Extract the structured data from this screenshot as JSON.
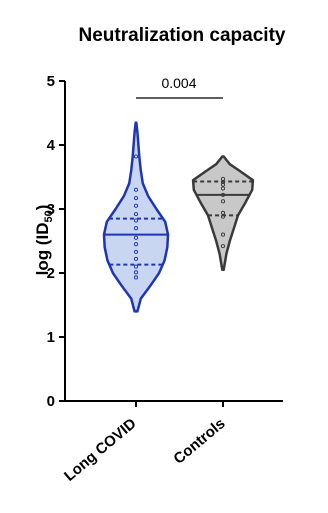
{
  "chart_data": {
    "type": "violin",
    "title": "Neutralization capacity",
    "ylabel": "log (ID",
    "ylabel_subscript": "50",
    "ylabel_close": ")",
    "ylim": [
      0,
      5
    ],
    "yticks": [
      "0",
      "1",
      "2",
      "3",
      "4",
      "5"
    ],
    "categories": [
      "Long COVID",
      "Controls"
    ],
    "colors": {
      "Long COVID": "#1f35b4",
      "Controls": "#3a3a3a",
      "fill_long_covid": "#c9d6f2",
      "fill_controls": "#c8c8c8"
    },
    "series": [
      {
        "category": "Long COVID",
        "range": [
          1.4,
          4.35
        ],
        "median": 2.6,
        "q1": 2.13,
        "q3": 2.85,
        "density": [
          [
            1.4,
            0.02
          ],
          [
            1.6,
            0.07
          ],
          [
            1.8,
            0.21
          ],
          [
            2.0,
            0.34
          ],
          [
            2.2,
            0.42
          ],
          [
            2.4,
            0.46
          ],
          [
            2.6,
            0.47
          ],
          [
            2.8,
            0.43
          ],
          [
            3.0,
            0.3
          ],
          [
            3.2,
            0.18
          ],
          [
            3.4,
            0.1
          ],
          [
            3.6,
            0.07
          ],
          [
            3.8,
            0.05
          ],
          [
            4.0,
            0.035
          ],
          [
            4.2,
            0.02
          ],
          [
            4.35,
            0.005
          ]
        ],
        "points": [
          1.93,
          2.01,
          2.1,
          2.22,
          2.33,
          2.45,
          2.55,
          2.7,
          2.82,
          2.92,
          3.05,
          3.17,
          3.3,
          3.82
        ]
      },
      {
        "category": "Controls",
        "range": [
          2.05,
          3.82
        ],
        "median": 3.22,
        "q1": 2.9,
        "q3": 3.43,
        "density": [
          [
            2.05,
            0.01
          ],
          [
            2.3,
            0.05
          ],
          [
            2.5,
            0.1
          ],
          [
            2.7,
            0.16
          ],
          [
            2.9,
            0.22
          ],
          [
            3.1,
            0.33
          ],
          [
            3.3,
            0.43
          ],
          [
            3.45,
            0.44
          ],
          [
            3.6,
            0.24
          ],
          [
            3.7,
            0.1
          ],
          [
            3.82,
            0.01
          ]
        ],
        "points": [
          2.42,
          2.6,
          2.88,
          2.94,
          3.12,
          3.22,
          3.32,
          3.38,
          3.42,
          3.47
        ]
      }
    ],
    "annotation": {
      "text": "0.004",
      "between": [
        "Long COVID",
        "Controls"
      ]
    }
  }
}
